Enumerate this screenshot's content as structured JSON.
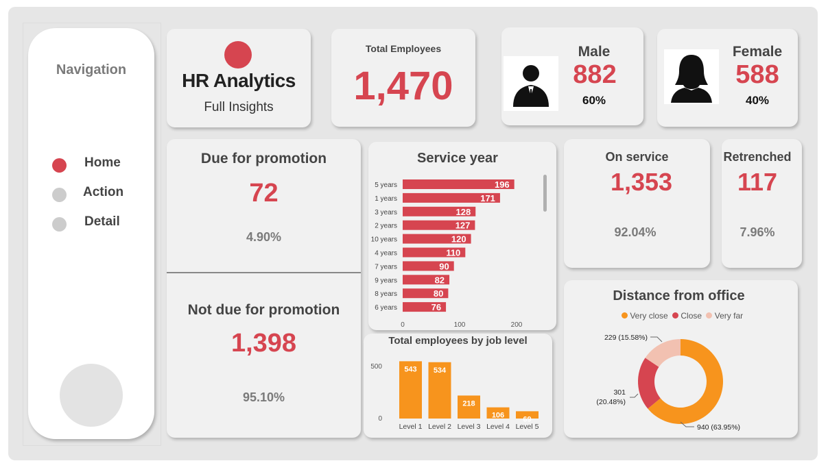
{
  "nav": {
    "title": "Navigation",
    "items": [
      {
        "label": "Home",
        "active": true
      },
      {
        "label": "Action",
        "active": false
      },
      {
        "label": "Detail",
        "active": false
      }
    ]
  },
  "brand": {
    "title": "HR Analytics",
    "subtitle": "Full Insights"
  },
  "total": {
    "label": "Total Employees",
    "value": "1,470"
  },
  "male": {
    "label": "Male",
    "value": "882",
    "pct": "60%"
  },
  "female": {
    "label": "Female",
    "value": "588",
    "pct": "40%"
  },
  "promotion": {
    "due_label": "Due for promotion",
    "due_value": "72",
    "due_pct": "4.90%",
    "not_label": "Not due for promotion",
    "not_value": "1,398",
    "not_pct": "95.10%"
  },
  "on_service": {
    "label": "On service",
    "value": "1,353",
    "pct": "92.04%"
  },
  "retrenched": {
    "label": "Retrenched",
    "value": "117",
    "pct": "7.96%"
  },
  "colors": {
    "accent": "#d64550",
    "orange": "#f7941d",
    "peach": "#f2c1b1",
    "grey_text": "#7a7a7a"
  },
  "chart_data": [
    {
      "type": "bar",
      "orientation": "horizontal",
      "title": "Service year",
      "categories": [
        "5 years",
        "1 years",
        "3 years",
        "2 years",
        "10 years",
        "4 years",
        "7 years",
        "9 years",
        "8 years",
        "6 years"
      ],
      "values": [
        196,
        171,
        128,
        127,
        120,
        110,
        90,
        82,
        80,
        76
      ],
      "xticks": [
        "0",
        "100",
        "200"
      ],
      "xlim": [
        0,
        210
      ],
      "color": "#d64550"
    },
    {
      "type": "bar",
      "title": "Total employees by job level",
      "categories": [
        "Level 1",
        "Level 2",
        "Level 3",
        "Level 4",
        "Level 5"
      ],
      "values": [
        543,
        534,
        218,
        106,
        69
      ],
      "yticks": [
        "0",
        "500"
      ],
      "ylim": [
        0,
        600
      ],
      "color": "#f7941d"
    },
    {
      "type": "pie",
      "donut": true,
      "title": "Distance from office",
      "legend": [
        "Very close",
        "Close",
        "Very far"
      ],
      "legend_position": "top",
      "values": [
        940,
        301,
        229
      ],
      "labels": [
        "940 (63.95%)",
        "301 (20.48%)",
        "229 (15.58%)"
      ],
      "colors": [
        "#f7941d",
        "#d64550",
        "#f2c1b1"
      ]
    }
  ]
}
